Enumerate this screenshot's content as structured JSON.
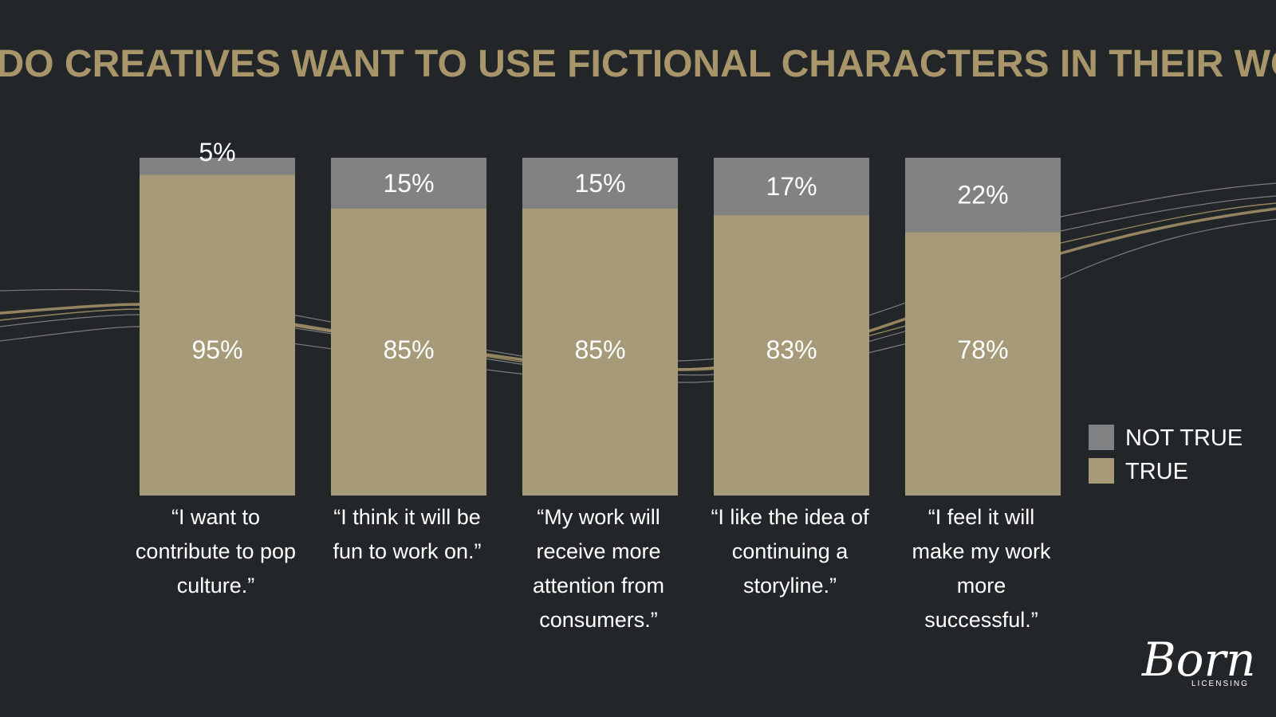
{
  "colors": {
    "background": "#232629",
    "title": "#a8966a",
    "true": "#a69a78",
    "not_true": "#808284",
    "text": "#ffffff",
    "decor_gold": "#a8966a",
    "decor_gray": "#8a8c8e"
  },
  "chart_data": {
    "type": "bar",
    "stacked": true,
    "title": "WHY DO CREATIVES WANT TO USE FICTIONAL CHARACTERS IN THEIR WORK?",
    "categories": [
      [
        "“I want to",
        "contribute to pop",
        "culture.”"
      ],
      [
        "“I think it will be",
        "fun to work on.”"
      ],
      [
        "“My work will",
        "receive more",
        "attention from",
        "consumers.”"
      ],
      [
        "“I like the idea of",
        "continuing a",
        "storyline.”"
      ],
      [
        "“I feel it will",
        "make my work",
        "more",
        "successful.”"
      ]
    ],
    "series": [
      {
        "name": "TRUE",
        "values": [
          95,
          85,
          85,
          83,
          78
        ],
        "labels": [
          "95%",
          "85%",
          "85%",
          "83%",
          "78%"
        ]
      },
      {
        "name": "NOT TRUE",
        "values": [
          5,
          15,
          15,
          17,
          22
        ],
        "labels": [
          "5%",
          "15%",
          "15%",
          "17%",
          "22%"
        ]
      }
    ],
    "ylim": [
      0,
      100
    ],
    "grid": false,
    "legend_position": "right",
    "legend": [
      "NOT TRUE",
      "TRUE"
    ]
  },
  "logo": {
    "script": "Born",
    "sub": "LICENSING"
  }
}
